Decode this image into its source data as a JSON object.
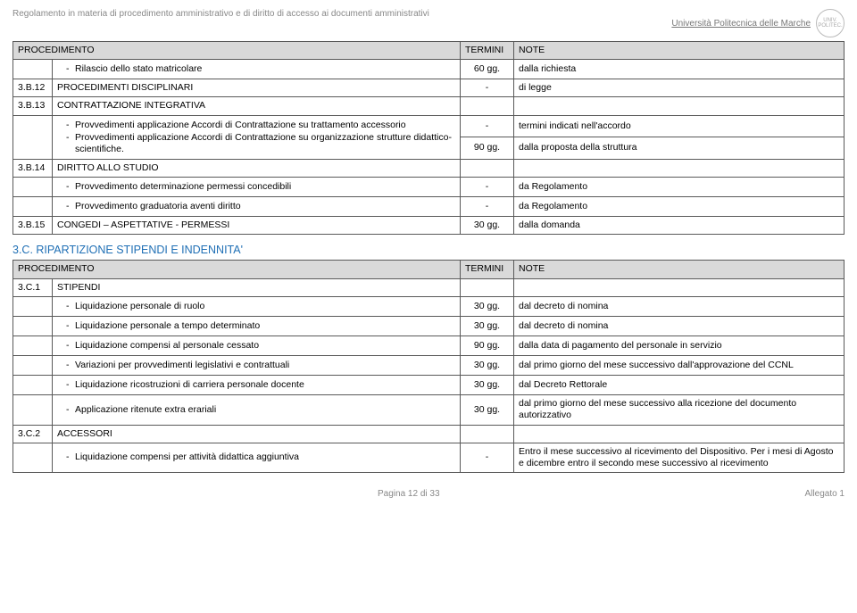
{
  "header": {
    "left": "Regolamento in materia di procedimento amministrativo e di diritto di accesso ai documenti amministrativi",
    "university": "Università Politecnica delle Marche",
    "seal_text": "UNIV. POLITEC."
  },
  "columns": {
    "procedimento": "PROCEDIMENTO",
    "termini": "TERMINI",
    "note": "NOTE"
  },
  "tableA": {
    "rows": [
      {
        "code": "",
        "desc_items": [
          "Rilascio dello stato matricolare"
        ],
        "termini": "60 gg.",
        "note": "dalla richiesta"
      },
      {
        "code": "3.B.12",
        "desc_text": "PROCEDIMENTI DISCIPLINARI",
        "termini": "-",
        "note": "di legge"
      },
      {
        "code": "3.B.13",
        "desc_text": "CONTRATTAZIONE INTEGRATIVA",
        "termini": "",
        "note": ""
      }
    ],
    "group_313": {
      "items": [
        "Provvedimenti applicazione Accordi di Contrattazione su trattamento accessorio",
        "Provvedimenti applicazione Accordi di Contrattazione su organizzazione strutture didattico-scientifiche."
      ],
      "termini": [
        "-",
        "90 gg."
      ],
      "note": [
        "termini indicati nell'accordo",
        "dalla proposta della struttura"
      ]
    },
    "row_314": {
      "code": "3.B.14",
      "desc_text": "DIRITTO ALLO STUDIO"
    },
    "rows_314": [
      {
        "desc_items": [
          "Provvedimento determinazione permessi concedibili"
        ],
        "termini": "-",
        "note": "da Regolamento"
      },
      {
        "desc_items": [
          "Provvedimento graduatoria aventi diritto"
        ],
        "termini": "-",
        "note": "da Regolamento"
      }
    ],
    "row_315": {
      "code": "3.B.15",
      "desc_text": "CONGEDI – ASPETTATIVE - PERMESSI",
      "termini": "30 gg.",
      "note": "dalla domanda"
    }
  },
  "sectionC": {
    "title": "3.C. RIPARTIZIONE STIPENDI E INDENNITA'",
    "row_3c1": {
      "code": "3.C.1",
      "desc_text": "STIPENDI"
    },
    "rows_3c1": [
      {
        "desc_items": [
          "Liquidazione personale di ruolo"
        ],
        "termini": "30 gg.",
        "note": "dal decreto di nomina"
      },
      {
        "desc_items": [
          "Liquidazione personale a tempo determinato"
        ],
        "termini": "30 gg.",
        "note": "dal decreto di nomina"
      },
      {
        "desc_items": [
          "Liquidazione compensi al personale cessato"
        ],
        "termini": "90 gg.",
        "note": "dalla data di pagamento del personale in servizio"
      },
      {
        "desc_items": [
          "Variazioni per provvedimenti legislativi e contrattuali"
        ],
        "termini": "30 gg.",
        "note": "dal primo giorno del mese successivo dall'approvazione del CCNL"
      },
      {
        "desc_items": [
          "Liquidazione ricostruzioni di carriera personale docente"
        ],
        "termini": "30 gg.",
        "note": "dal Decreto Rettorale"
      },
      {
        "desc_items": [
          "Applicazione ritenute extra erariali"
        ],
        "termini": "30 gg.",
        "note": "dal primo giorno del mese successivo alla ricezione del documento autorizzativo"
      }
    ],
    "row_3c2": {
      "code": "3.C.2",
      "desc_text": "ACCESSORI"
    },
    "rows_3c2": [
      {
        "desc_items": [
          "Liquidazione compensi per attività didattica aggiuntiva"
        ],
        "termini": "-",
        "note": "Entro il mese successivo al ricevimento del Dispositivo. Per i mesi di Agosto e dicembre entro il secondo mese successivo al ricevimento"
      }
    ]
  },
  "footer": {
    "page": "Pagina 12 di 33",
    "right": "Allegato 1"
  }
}
